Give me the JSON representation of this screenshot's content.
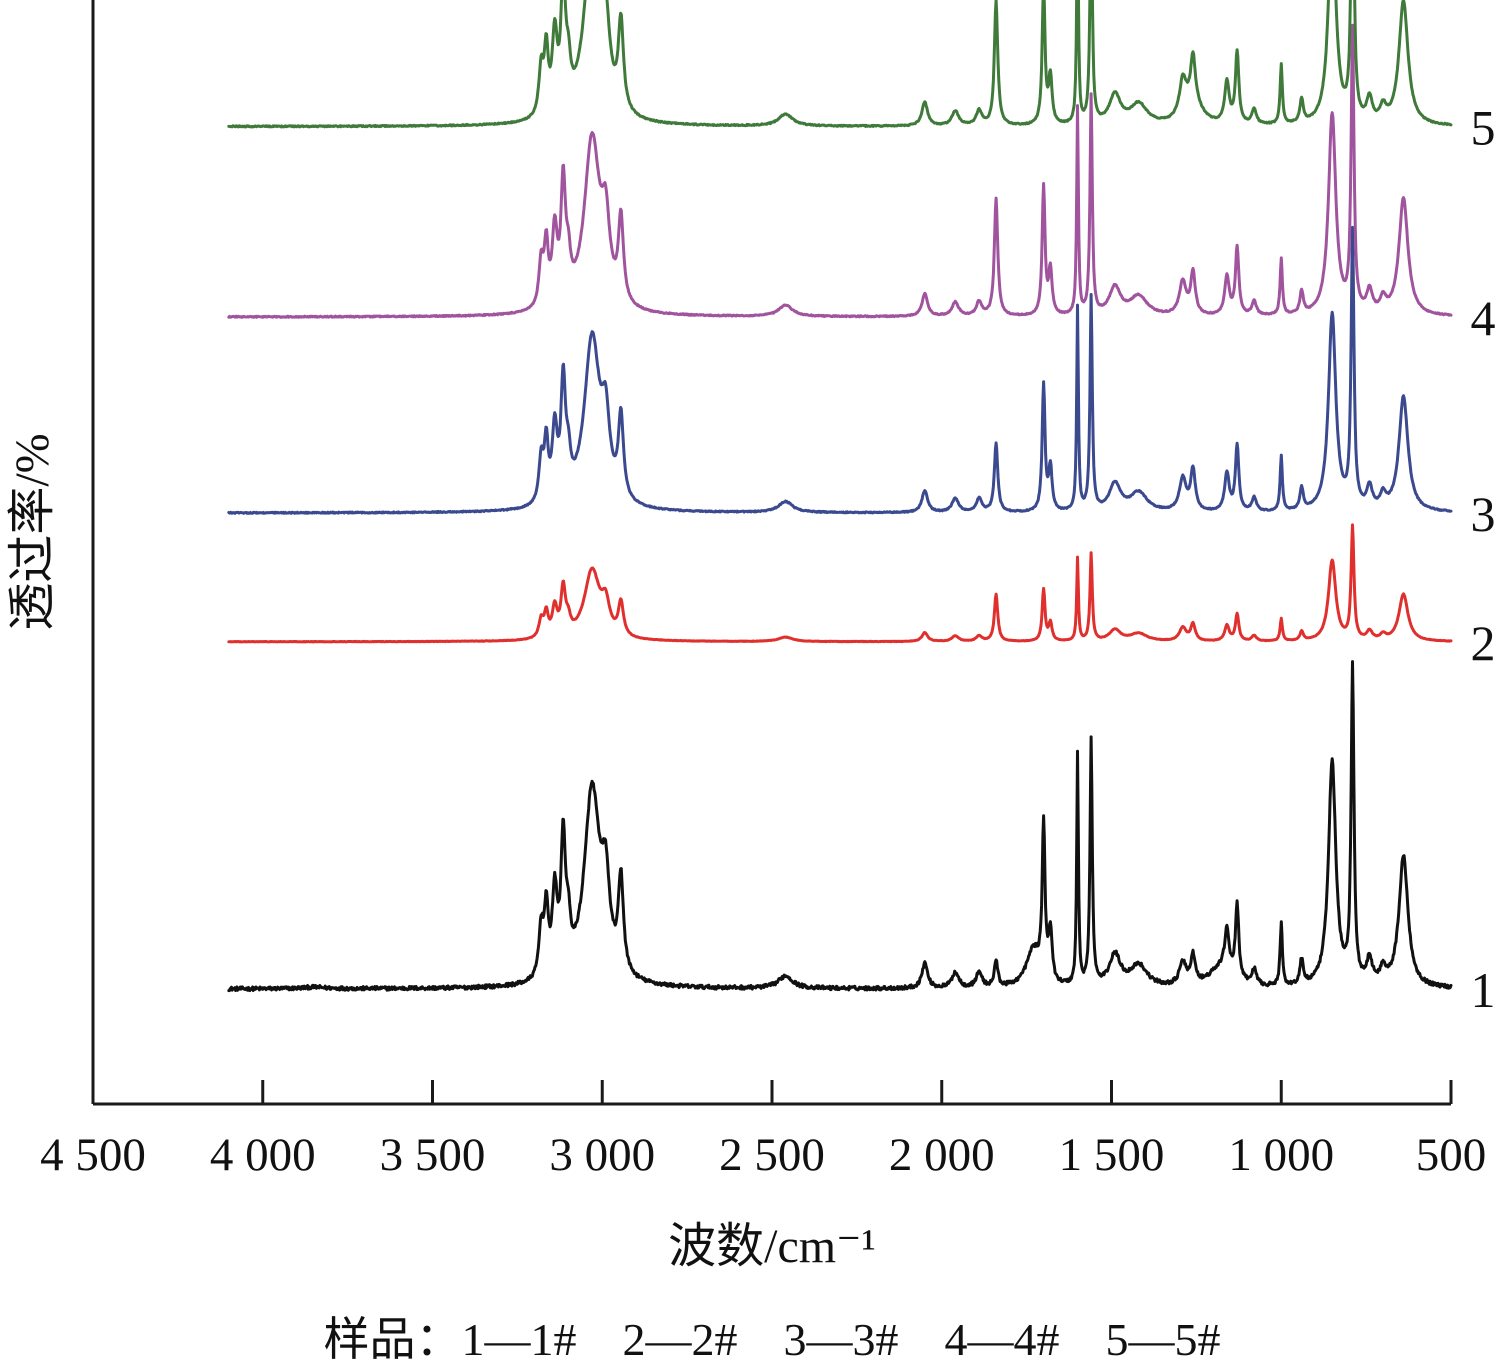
{
  "chart_data": {
    "type": "line",
    "xlabel": "波数/cm⁻¹",
    "ylabel": "透过率/%",
    "xlim": [
      4500,
      500
    ],
    "x_reversed": true,
    "x_ticks": [
      4500,
      4000,
      3500,
      3000,
      2500,
      2000,
      1500,
      1000,
      500
    ],
    "x_tick_labels": [
      "4 500",
      "4 000",
      "3 500",
      "3 000",
      "2 500",
      "2 000",
      "1 500",
      "1 000",
      "500"
    ],
    "y_tick_labels": [],
    "x_range_plotted": [
      4100,
      500
    ],
    "grid": false,
    "legend": "none",
    "caption": "样品：1—1#　2—2#　3—3#　4—4#　5—5#",
    "peaks": [
      {
        "x": 3180,
        "w": 8,
        "h": 0.16
      },
      {
        "x": 3165,
        "w": 7,
        "h": 0.21
      },
      {
        "x": 3140,
        "w": 9,
        "h": 0.26
      },
      {
        "x": 3115,
        "w": 8,
        "h": 0.42
      },
      {
        "x": 3100,
        "w": 8,
        "h": 0.12
      },
      {
        "x": 3030,
        "w": 28,
        "h": 0.62
      },
      {
        "x": 2990,
        "w": 14,
        "h": 0.25
      },
      {
        "x": 2945,
        "w": 9,
        "h": 0.3
      },
      {
        "x": 2460,
        "w": 25,
        "h": 0.04
      },
      {
        "x": 2050,
        "w": 10,
        "h": 0.08
      },
      {
        "x": 1960,
        "w": 12,
        "h": 0.05
      },
      {
        "x": 1890,
        "w": 10,
        "h": 0.05
      },
      {
        "x": 1840,
        "w": 6,
        "h": 0.42
      },
      {
        "x": 1700,
        "w": 5,
        "h": 0.46
      },
      {
        "x": 1680,
        "w": 6,
        "h": 0.16
      },
      {
        "x": 1600,
        "w": 3,
        "h": 0.74
      },
      {
        "x": 1560,
        "w": 4,
        "h": 0.78
      },
      {
        "x": 1490,
        "w": 20,
        "h": 0.1
      },
      {
        "x": 1420,
        "w": 30,
        "h": 0.07
      },
      {
        "x": 1290,
        "w": 12,
        "h": 0.12
      },
      {
        "x": 1260,
        "w": 8,
        "h": 0.15
      },
      {
        "x": 1160,
        "w": 8,
        "h": 0.14
      },
      {
        "x": 1130,
        "w": 6,
        "h": 0.24
      },
      {
        "x": 1080,
        "w": 8,
        "h": 0.05
      },
      {
        "x": 1000,
        "w": 4,
        "h": 0.2
      },
      {
        "x": 940,
        "w": 6,
        "h": 0.08
      },
      {
        "x": 850,
        "w": 13,
        "h": 0.72
      },
      {
        "x": 790,
        "w": 5,
        "h": 1.0
      },
      {
        "x": 740,
        "w": 10,
        "h": 0.08
      },
      {
        "x": 700,
        "w": 10,
        "h": 0.05
      },
      {
        "x": 640,
        "w": 16,
        "h": 0.42
      }
    ],
    "series": [
      {
        "label": "1",
        "color": "#111111",
        "baseline": 0.0,
        "amplitude": 0.56,
        "noise": 0.006,
        "extra_peaks": [
          {
            "x": 1730,
            "w": 25,
            "h": 0.12
          },
          {
            "x": 1180,
            "w": 40,
            "h": 0.06
          },
          {
            "x": 3850,
            "w": 40,
            "h": 0.005
          }
        ],
        "scale": {
          "1700": 1.05,
          "1840": 0.2,
          "1290": 0.6,
          "1260": 0.6
        }
      },
      {
        "label": "2",
        "color": "#e0302e",
        "baseline": 0.62,
        "amplitude": 0.2,
        "noise": 0.002,
        "extra_peaks": [],
        "scale": {}
      },
      {
        "label": "3",
        "color": "#3b4a8f",
        "baseline": 0.85,
        "amplitude": 0.49,
        "noise": 0.002,
        "extra_peaks": [],
        "scale": {
          "1840": 0.6
        }
      },
      {
        "label": "4",
        "color": "#a0549e",
        "baseline": 1.2,
        "amplitude": 0.5,
        "noise": 0.002,
        "extra_peaks": [],
        "scale": {}
      },
      {
        "label": "5",
        "color": "#3f7a3a",
        "baseline": 1.54,
        "amplitude": 0.53,
        "noise": 0.002,
        "extra_peaks": [
          {
            "x": 1260,
            "w": 30,
            "h": 0.08
          }
        ],
        "scale": {}
      }
    ]
  }
}
